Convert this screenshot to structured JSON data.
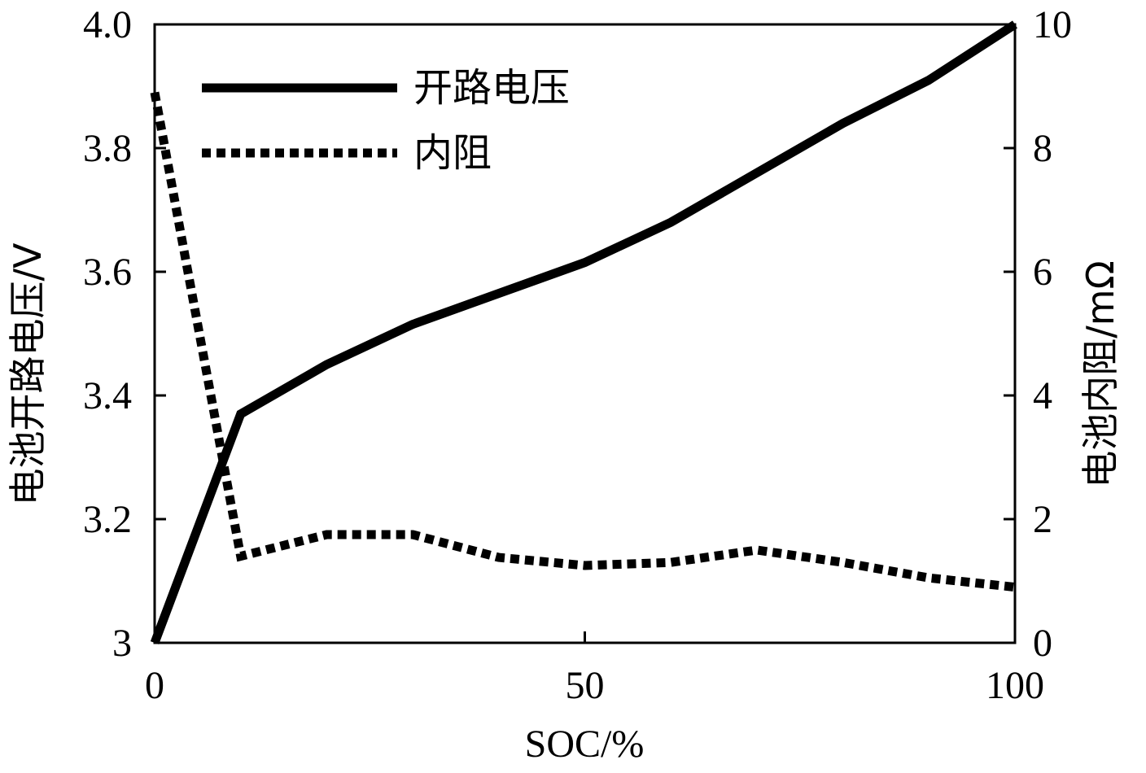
{
  "chart_data": {
    "type": "line",
    "xlabel": "SOC/%",
    "ylabel_left": "电池开路电压/V",
    "ylabel_right": "电池内阻/mΩ",
    "xlim": [
      0,
      100
    ],
    "ylim_left": [
      3.0,
      4.0
    ],
    "ylim_right": [
      0,
      10
    ],
    "x_ticks": [
      "0",
      "50",
      "100"
    ],
    "x_tick_values": [
      0,
      50,
      100
    ],
    "y_left_ticks": [
      "3",
      "3.2",
      "3.4",
      "3.6",
      "3.8",
      "4.0"
    ],
    "y_left_tick_values": [
      3.0,
      3.2,
      3.4,
      3.6,
      3.8,
      4.0
    ],
    "y_right_ticks": [
      "0",
      "2",
      "4",
      "6",
      "8",
      "10"
    ],
    "y_right_tick_values": [
      0,
      2,
      4,
      6,
      8,
      10
    ],
    "grid": false,
    "legend_position": "top-left",
    "series": [
      {
        "name": "开路电压",
        "axis": "left",
        "style": "solid",
        "color": "#000000",
        "x": [
          0,
          10,
          20,
          30,
          40,
          50,
          60,
          70,
          80,
          90,
          100
        ],
        "y": [
          3.0,
          3.37,
          3.45,
          3.515,
          3.565,
          3.615,
          3.68,
          3.76,
          3.84,
          3.91,
          4.0
        ]
      },
      {
        "name": "内阻",
        "axis": "right",
        "style": "dotted",
        "color": "#000000",
        "x": [
          0,
          10,
          20,
          30,
          40,
          50,
          60,
          70,
          80,
          90,
          100
        ],
        "y": [
          8.9,
          1.4,
          1.75,
          1.75,
          1.38,
          1.25,
          1.3,
          1.5,
          1.3,
          1.05,
          0.9
        ]
      }
    ]
  }
}
